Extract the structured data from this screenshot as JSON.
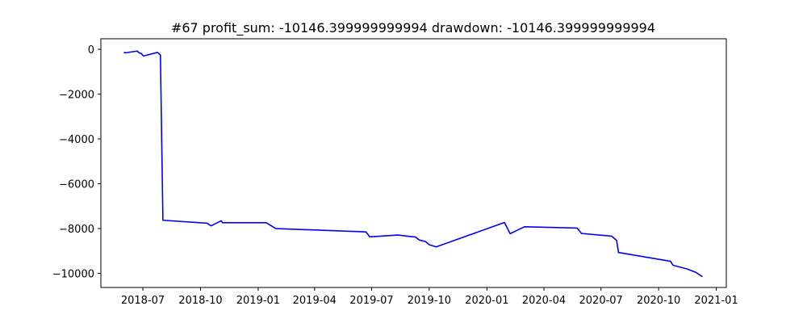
{
  "chart_data": {
    "type": "line",
    "title": "#67   profit_sum: -10146.399999999994 drawdown: -10146.399999999994",
    "xlabel": "",
    "ylabel": "",
    "xlim": [
      "2018-04-25",
      "2021-01-17"
    ],
    "ylim": [
      -10630,
      470
    ],
    "x_ticks": [
      "2018-07",
      "2018-10",
      "2019-01",
      "2019-04",
      "2019-07",
      "2019-10",
      "2020-01",
      "2020-04",
      "2020-07",
      "2020-10",
      "2021-01"
    ],
    "y_ticks": [
      0,
      -2000,
      -4000,
      -6000,
      -8000,
      -10000
    ],
    "y_tick_labels": [
      "0",
      "−2000",
      "−4000",
      "−6000",
      "−8000",
      "−10000"
    ],
    "grid": false,
    "series": [
      {
        "color": "#0000ff",
        "points": [
          [
            "2018-06-01",
            -120
          ],
          [
            "2018-06-02",
            -160
          ],
          [
            "2018-06-22",
            -80
          ],
          [
            "2018-06-25",
            -160
          ],
          [
            "2018-06-28",
            -180
          ],
          [
            "2018-07-02",
            -300
          ],
          [
            "2018-07-24",
            -140
          ],
          [
            "2018-07-27",
            -200
          ],
          [
            "2018-07-29",
            -260
          ],
          [
            "2018-08-02",
            -7630
          ],
          [
            "2018-10-11",
            -7760
          ],
          [
            "2018-10-18",
            -7880
          ],
          [
            "2018-11-03",
            -7650
          ],
          [
            "2018-11-05",
            -7740
          ],
          [
            "2019-01-14",
            -7740
          ],
          [
            "2019-01-29",
            -8000
          ],
          [
            "2019-06-22",
            -8150
          ],
          [
            "2019-06-28",
            -8370
          ],
          [
            "2019-08-12",
            -8290
          ],
          [
            "2019-09-09",
            -8380
          ],
          [
            "2019-09-15",
            -8510
          ],
          [
            "2019-09-25",
            -8580
          ],
          [
            "2019-10-01",
            -8720
          ],
          [
            "2019-10-12",
            -8820
          ],
          [
            "2020-01-29",
            -7730
          ],
          [
            "2020-02-07",
            -8230
          ],
          [
            "2020-03-01",
            -7920
          ],
          [
            "2020-05-24",
            -7980
          ],
          [
            "2020-05-31",
            -8220
          ],
          [
            "2020-07-18",
            -8340
          ],
          [
            "2020-07-26",
            -8530
          ],
          [
            "2020-07-29",
            -9070
          ],
          [
            "2020-10-20",
            -9460
          ],
          [
            "2020-10-24",
            -9640
          ],
          [
            "2020-11-15",
            -9800
          ],
          [
            "2020-11-29",
            -9950
          ],
          [
            "2020-12-10",
            -10150
          ]
        ]
      }
    ]
  }
}
